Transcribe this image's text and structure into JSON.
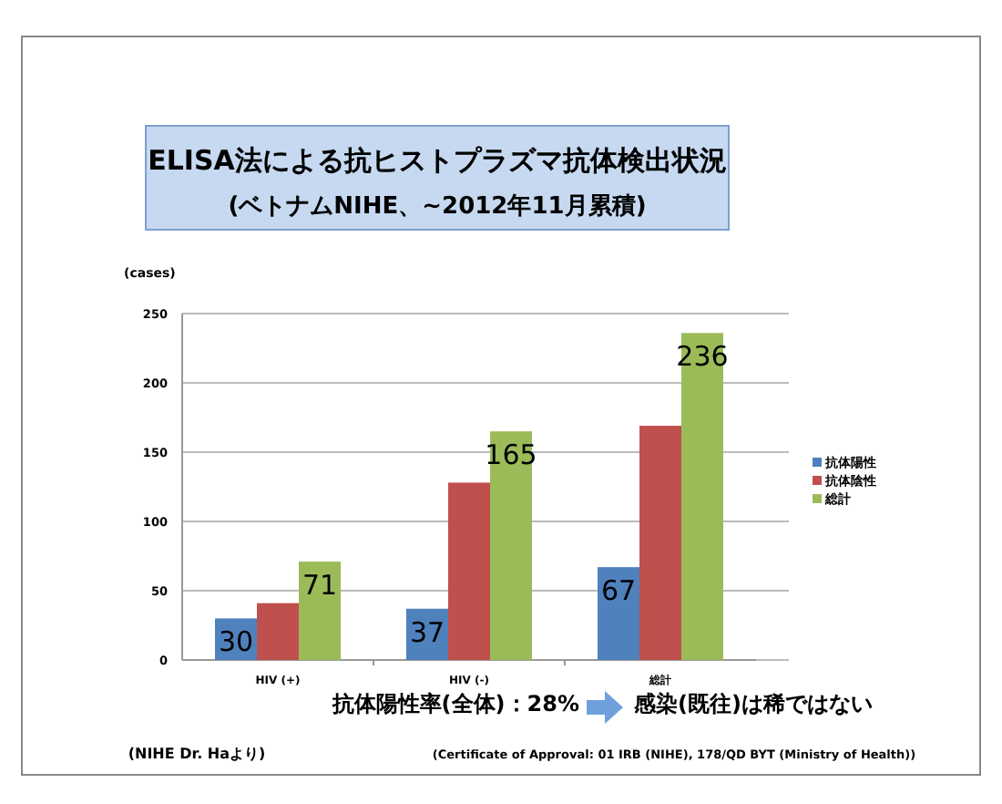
{
  "chart_data": {
    "type": "bar",
    "title": "ELISA法による抗ヒストプラズマ抗体検出状況",
    "subtitle": "(ベトナムNIHE、~2012年11月累積)",
    "ylabel": "(cases)",
    "categories": [
      "HIV (+)",
      "HIV (-)",
      "総計"
    ],
    "series": [
      {
        "name": "抗体陽性",
        "color": "#4f81bd",
        "values": [
          30,
          37,
          67
        ],
        "value_labels": [
          "30",
          "37",
          "67"
        ]
      },
      {
        "name": "抗体陰性",
        "color": "#c0504d",
        "values": [
          41,
          128,
          169
        ],
        "value_labels": [
          null,
          null,
          null
        ]
      },
      {
        "name": "総計",
        "color": "#9bbb59",
        "values": [
          71,
          165,
          236
        ],
        "value_labels": [
          "71",
          "165",
          "236"
        ]
      }
    ],
    "ylim": [
      0,
      250
    ],
    "yticks": [
      0,
      50,
      100,
      150,
      200,
      250
    ],
    "grid": "y",
    "legend": "right",
    "annotations": [
      "抗体陽性率(全体)：28%",
      "感染(既往)は稀ではない",
      "(NIHE Dr. Haより)",
      "(Certificate of Approval: 01 IRB (NIHE), 178/QD BYT (Ministry of Health))"
    ]
  }
}
